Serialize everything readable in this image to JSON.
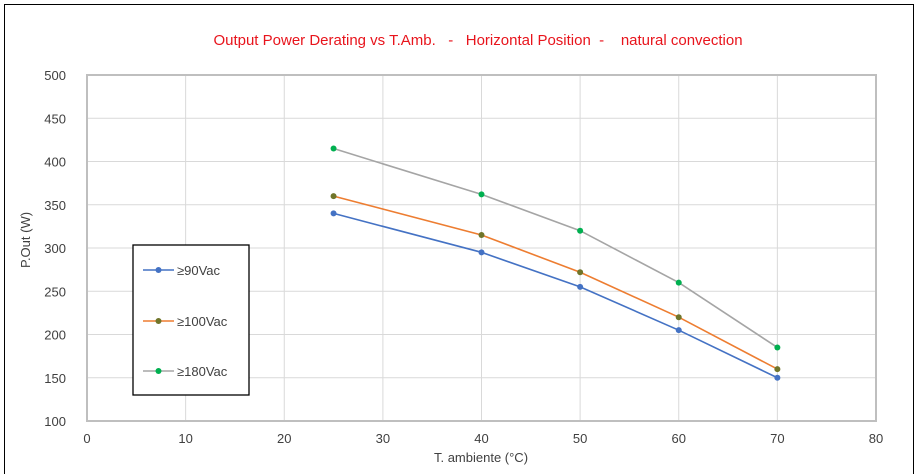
{
  "chart_data": {
    "type": "line",
    "title": "Output Power Derating vs T.Amb.   -   Horizontal Position  -    natural convection",
    "xlabel": "T. ambiente (°C)",
    "ylabel": "P.Out (W)",
    "xlim": [
      0,
      80
    ],
    "ylim": [
      100,
      500
    ],
    "xticks": [
      0,
      10,
      20,
      30,
      40,
      50,
      60,
      70,
      80
    ],
    "yticks": [
      100,
      150,
      200,
      250,
      300,
      350,
      400,
      450,
      500
    ],
    "xtick_labels": [
      "0",
      "10",
      "20",
      "30",
      "40",
      "50",
      "60",
      "70",
      "80"
    ],
    "ytick_labels": [
      "100",
      "150",
      "200",
      "250",
      "300",
      "350",
      "400",
      "450",
      "500"
    ],
    "grid": true,
    "legend_position": "left-middle",
    "x": [
      25,
      40,
      50,
      60,
      70
    ],
    "series": [
      {
        "name": "≥90Vac",
        "values": [
          340,
          295,
          255,
          205,
          150
        ],
        "line_color": "#4472c4",
        "marker_color": "#4472c4"
      },
      {
        "name": "≥100Vac",
        "values": [
          360,
          315,
          272,
          220,
          160
        ],
        "line_color": "#ed7d31",
        "marker_color": "#70752a"
      },
      {
        "name": "≥180Vac",
        "values": [
          415,
          362,
          320,
          260,
          185
        ],
        "line_color": "#a5a5a5",
        "marker_color": "#00b050"
      }
    ]
  }
}
